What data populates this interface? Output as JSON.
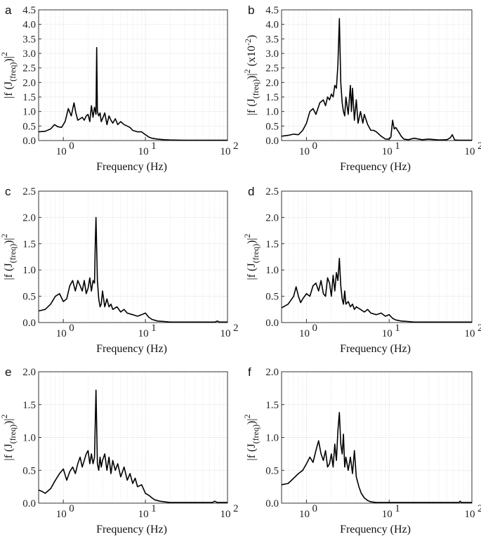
{
  "chart_data": [
    {
      "panel": "a",
      "type": "line",
      "xscale": "log",
      "xlim": [
        0.5,
        100
      ],
      "ylim": [
        0,
        4.5
      ],
      "yticks": [
        0,
        0.5,
        1.0,
        1.5,
        2.0,
        2.5,
        3.0,
        3.5,
        4.0,
        4.5
      ],
      "xlabel": "Frequency (Hz)",
      "ylabel": "|f (J(freq))|2",
      "grid": true,
      "series": [
        {
          "name": "a",
          "x": [
            0.5,
            0.6,
            0.7,
            0.78,
            0.85,
            0.95,
            1.05,
            1.15,
            1.25,
            1.35,
            1.42,
            1.5,
            1.6,
            1.7,
            1.8,
            1.9,
            2.0,
            2.1,
            2.2,
            2.3,
            2.4,
            2.5,
            2.55,
            2.6,
            2.7,
            2.8,
            2.9,
            3.0,
            3.2,
            3.4,
            3.6,
            3.8,
            4.0,
            4.3,
            4.6,
            5.0,
            5.5,
            6.0,
            6.5,
            7.0,
            8.0,
            9.0,
            10.0,
            11.0,
            12.0,
            14.0,
            17.0,
            20.0,
            30.0,
            50.0,
            100.0
          ],
          "y": [
            0.3,
            0.32,
            0.4,
            0.55,
            0.48,
            0.45,
            0.65,
            1.1,
            0.85,
            1.3,
            0.95,
            0.7,
            0.75,
            0.8,
            0.7,
            0.85,
            0.9,
            0.65,
            1.2,
            0.8,
            1.15,
            0.9,
            3.2,
            1.0,
            0.85,
            0.95,
            0.65,
            0.75,
            0.95,
            0.55,
            0.85,
            0.7,
            0.6,
            0.75,
            0.55,
            0.65,
            0.55,
            0.5,
            0.45,
            0.35,
            0.3,
            0.3,
            0.2,
            0.12,
            0.08,
            0.05,
            0.03,
            0.02,
            0.01,
            0.01,
            0.01
          ]
        }
      ]
    },
    {
      "panel": "b",
      "type": "line",
      "xscale": "log",
      "xlim": [
        0.5,
        100
      ],
      "ylim": [
        0,
        4.5
      ],
      "yticks": [
        0,
        0.5,
        1.0,
        1.5,
        2.0,
        2.5,
        3.0,
        3.5,
        4.0,
        4.5
      ],
      "xlabel": "Frequency (Hz)",
      "ylabel": "|f (J(freq))|2 (x10-2)",
      "grid": true,
      "series": [
        {
          "name": "b",
          "x": [
            0.5,
            0.6,
            0.7,
            0.8,
            0.9,
            1.0,
            1.1,
            1.2,
            1.3,
            1.45,
            1.6,
            1.7,
            1.8,
            1.9,
            2.0,
            2.1,
            2.2,
            2.3,
            2.4,
            2.5,
            2.6,
            2.7,
            2.8,
            2.9,
            3.0,
            3.2,
            3.4,
            3.5,
            3.6,
            3.8,
            4.0,
            4.2,
            4.5,
            4.8,
            5.0,
            5.5,
            6.0,
            6.5,
            7.0,
            8.0,
            9.0,
            10.0,
            10.5,
            11.0,
            11.5,
            12.0,
            13.0,
            14.0,
            15.0,
            17.0,
            20.0,
            25.0,
            30.0,
            40.0,
            50.0,
            55.0,
            58.0,
            62.0,
            70.0,
            100.0
          ],
          "y": [
            0.15,
            0.18,
            0.22,
            0.2,
            0.35,
            0.6,
            1.0,
            1.1,
            0.9,
            1.3,
            1.4,
            1.2,
            1.5,
            1.4,
            1.6,
            1.5,
            1.9,
            1.8,
            2.6,
            4.2,
            2.0,
            1.3,
            1.0,
            0.85,
            1.5,
            0.9,
            1.9,
            1.0,
            1.8,
            0.7,
            1.4,
            0.6,
            1.0,
            0.6,
            0.9,
            0.55,
            0.35,
            0.35,
            0.3,
            0.15,
            0.05,
            0.05,
            0.12,
            0.7,
            0.4,
            0.45,
            0.3,
            0.15,
            0.05,
            0.03,
            0.08,
            0.03,
            0.05,
            0.02,
            0.03,
            0.1,
            0.2,
            0.02,
            0.01,
            0.01
          ]
        }
      ]
    },
    {
      "panel": "c",
      "type": "line",
      "xscale": "log",
      "xlim": [
        0.5,
        100
      ],
      "ylim": [
        0,
        2.5
      ],
      "yticks": [
        0,
        0.5,
        1.0,
        1.5,
        2.0,
        2.5
      ],
      "xlabel": "Frequency (Hz)",
      "ylabel": "|f (J(freq))|2",
      "grid": true,
      "series": [
        {
          "name": "c",
          "x": [
            0.5,
            0.6,
            0.7,
            0.8,
            0.9,
            1.0,
            1.1,
            1.2,
            1.3,
            1.4,
            1.5,
            1.6,
            1.7,
            1.8,
            1.9,
            2.0,
            2.1,
            2.2,
            2.3,
            2.4,
            2.45,
            2.5,
            2.6,
            2.7,
            2.8,
            2.9,
            3.0,
            3.2,
            3.4,
            3.6,
            3.8,
            4.0,
            4.5,
            5.0,
            5.5,
            6.0,
            7.0,
            8.0,
            9.0,
            10.0,
            11.0,
            12.0,
            14.0,
            17.0,
            20.0,
            30.0,
            50.0,
            70.0,
            75.0,
            80.0,
            100.0
          ],
          "y": [
            0.22,
            0.25,
            0.35,
            0.5,
            0.55,
            0.4,
            0.45,
            0.7,
            0.8,
            0.6,
            0.8,
            0.7,
            0.6,
            0.8,
            0.55,
            0.65,
            0.85,
            0.6,
            0.8,
            0.75,
            1.5,
            2.0,
            0.8,
            0.45,
            0.3,
            0.35,
            0.6,
            0.3,
            0.45,
            0.3,
            0.35,
            0.25,
            0.3,
            0.2,
            0.25,
            0.18,
            0.15,
            0.12,
            0.15,
            0.18,
            0.1,
            0.06,
            0.03,
            0.02,
            0.01,
            0.01,
            0.01,
            0.01,
            0.03,
            0.01,
            0.01
          ]
        }
      ]
    },
    {
      "panel": "d",
      "type": "line",
      "xscale": "log",
      "xlim": [
        0.5,
        100
      ],
      "ylim": [
        0,
        2.5
      ],
      "yticks": [
        0,
        0.5,
        1.0,
        1.5,
        2.0,
        2.5
      ],
      "xlabel": "Frequency (Hz)",
      "ylabel": "|f (J(freq))|2",
      "grid": true,
      "series": [
        {
          "name": "d",
          "x": [
            0.5,
            0.6,
            0.7,
            0.75,
            0.8,
            0.85,
            0.9,
            1.0,
            1.1,
            1.2,
            1.3,
            1.4,
            1.5,
            1.6,
            1.7,
            1.8,
            1.9,
            2.0,
            2.1,
            2.2,
            2.3,
            2.4,
            2.5,
            2.6,
            2.7,
            2.8,
            2.9,
            3.0,
            3.2,
            3.4,
            3.6,
            3.8,
            4.0,
            4.5,
            5.0,
            5.5,
            6.0,
            7.0,
            8.0,
            9.0,
            10.0,
            11.0,
            12.0,
            14.0,
            17.0,
            20.0,
            30.0,
            50.0,
            100.0
          ],
          "y": [
            0.28,
            0.35,
            0.5,
            0.68,
            0.5,
            0.38,
            0.45,
            0.55,
            0.5,
            0.7,
            0.75,
            0.6,
            0.8,
            0.55,
            0.5,
            0.85,
            0.75,
            0.5,
            0.9,
            0.6,
            0.95,
            0.8,
            1.22,
            0.7,
            0.45,
            0.35,
            0.6,
            0.35,
            0.4,
            0.3,
            0.35,
            0.25,
            0.3,
            0.25,
            0.2,
            0.25,
            0.18,
            0.15,
            0.18,
            0.12,
            0.15,
            0.08,
            0.05,
            0.03,
            0.02,
            0.01,
            0.01,
            0.01,
            0.01
          ]
        }
      ]
    },
    {
      "panel": "e",
      "type": "line",
      "xscale": "log",
      "xlim": [
        0.5,
        100
      ],
      "ylim": [
        0,
        2.0
      ],
      "yticks": [
        0,
        0.5,
        1.0,
        1.5,
        2.0
      ],
      "xlabel": "Frequency (Hz)",
      "ylabel": "|f (J(freq))|2",
      "grid": true,
      "series": [
        {
          "name": "e",
          "x": [
            0.5,
            0.55,
            0.6,
            0.7,
            0.8,
            0.9,
            1.0,
            1.1,
            1.2,
            1.3,
            1.4,
            1.5,
            1.6,
            1.7,
            1.8,
            1.9,
            2.0,
            2.1,
            2.2,
            2.3,
            2.4,
            2.5,
            2.6,
            2.7,
            2.8,
            2.9,
            3.0,
            3.2,
            3.4,
            3.6,
            3.8,
            4.0,
            4.3,
            4.6,
            5.0,
            5.5,
            6.0,
            6.5,
            7.0,
            7.5,
            8.0,
            9.0,
            10.0,
            11.0,
            12.0,
            13.0,
            15.0,
            17.0,
            20.0,
            30.0,
            50.0,
            65.0,
            70.0,
            75.0,
            100.0
          ],
          "y": [
            0.2,
            0.18,
            0.15,
            0.22,
            0.35,
            0.45,
            0.52,
            0.35,
            0.48,
            0.55,
            0.45,
            0.6,
            0.7,
            0.55,
            0.65,
            0.75,
            0.8,
            0.6,
            0.75,
            0.6,
            0.7,
            1.72,
            0.6,
            0.5,
            0.7,
            0.55,
            0.65,
            0.75,
            0.5,
            0.7,
            0.45,
            0.65,
            0.5,
            0.6,
            0.4,
            0.55,
            0.35,
            0.45,
            0.3,
            0.38,
            0.25,
            0.28,
            0.15,
            0.12,
            0.08,
            0.05,
            0.03,
            0.02,
            0.01,
            0.01,
            0.01,
            0.01,
            0.03,
            0.01,
            0.01
          ]
        }
      ]
    },
    {
      "panel": "f",
      "type": "line",
      "xscale": "log",
      "xlim": [
        0.5,
        100
      ],
      "ylim": [
        0,
        2.0
      ],
      "yticks": [
        0,
        0.5,
        1.0,
        1.5,
        2.0
      ],
      "xlabel": "Frequency (Hz)",
      "ylabel": "|f (J(freq))|2",
      "grid": true,
      "series": [
        {
          "name": "f",
          "x": [
            0.5,
            0.6,
            0.7,
            0.8,
            0.9,
            1.0,
            1.1,
            1.2,
            1.3,
            1.4,
            1.5,
            1.6,
            1.7,
            1.8,
            1.9,
            2.0,
            2.1,
            2.2,
            2.3,
            2.4,
            2.5,
            2.6,
            2.7,
            2.8,
            2.9,
            3.0,
            3.2,
            3.4,
            3.6,
            3.8,
            4.0,
            4.3,
            4.6,
            5.0,
            5.5,
            6.0,
            7.0,
            8.0,
            10.0,
            15.0,
            20.0,
            50.0,
            70.0,
            72.0,
            75.0,
            100.0
          ],
          "y": [
            0.28,
            0.3,
            0.38,
            0.45,
            0.5,
            0.6,
            0.7,
            0.62,
            0.8,
            0.95,
            0.75,
            0.65,
            0.8,
            0.55,
            0.6,
            0.75,
            0.55,
            0.9,
            0.65,
            1.1,
            1.38,
            0.9,
            0.75,
            1.05,
            0.55,
            0.7,
            0.5,
            0.7,
            0.45,
            0.8,
            0.4,
            0.25,
            0.15,
            0.08,
            0.04,
            0.02,
            0.01,
            0.01,
            0.01,
            0.01,
            0.01,
            0.01,
            0.01,
            0.03,
            0.01,
            0.01
          ]
        }
      ]
    }
  ]
}
